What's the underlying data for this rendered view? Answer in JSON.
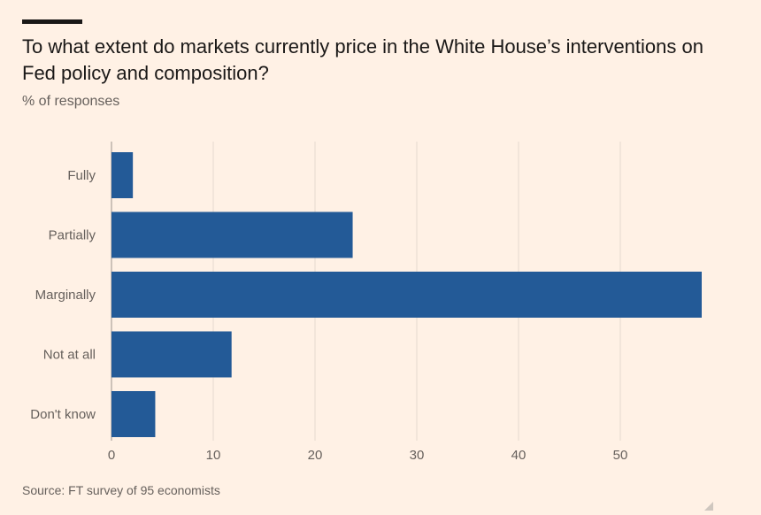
{
  "title": "To what extent do markets currently price in the White House’s interventions on Fed policy and composition?",
  "subtitle": "% of responses",
  "source": "Source: FT survey of 95 economists",
  "colors": {
    "background": "#fff1e5",
    "bar": "#235a97",
    "gridline": "#e6d9ce",
    "axis": "#9b948d",
    "label": "#66605c"
  },
  "chart_data": {
    "type": "bar",
    "orientation": "horizontal",
    "categories": [
      "Fully",
      "Partially",
      "Marginally",
      "Not at all",
      "Don't know"
    ],
    "values": [
      2.1,
      23.7,
      58.0,
      11.8,
      4.3
    ],
    "xlim": [
      0,
      60
    ],
    "xticks": [
      0,
      10,
      20,
      30,
      40,
      50
    ],
    "grid": true,
    "title": "To what extent do markets currently price in the White House’s interventions on Fed policy and composition?",
    "xlabel": "",
    "ylabel": "% of responses"
  }
}
